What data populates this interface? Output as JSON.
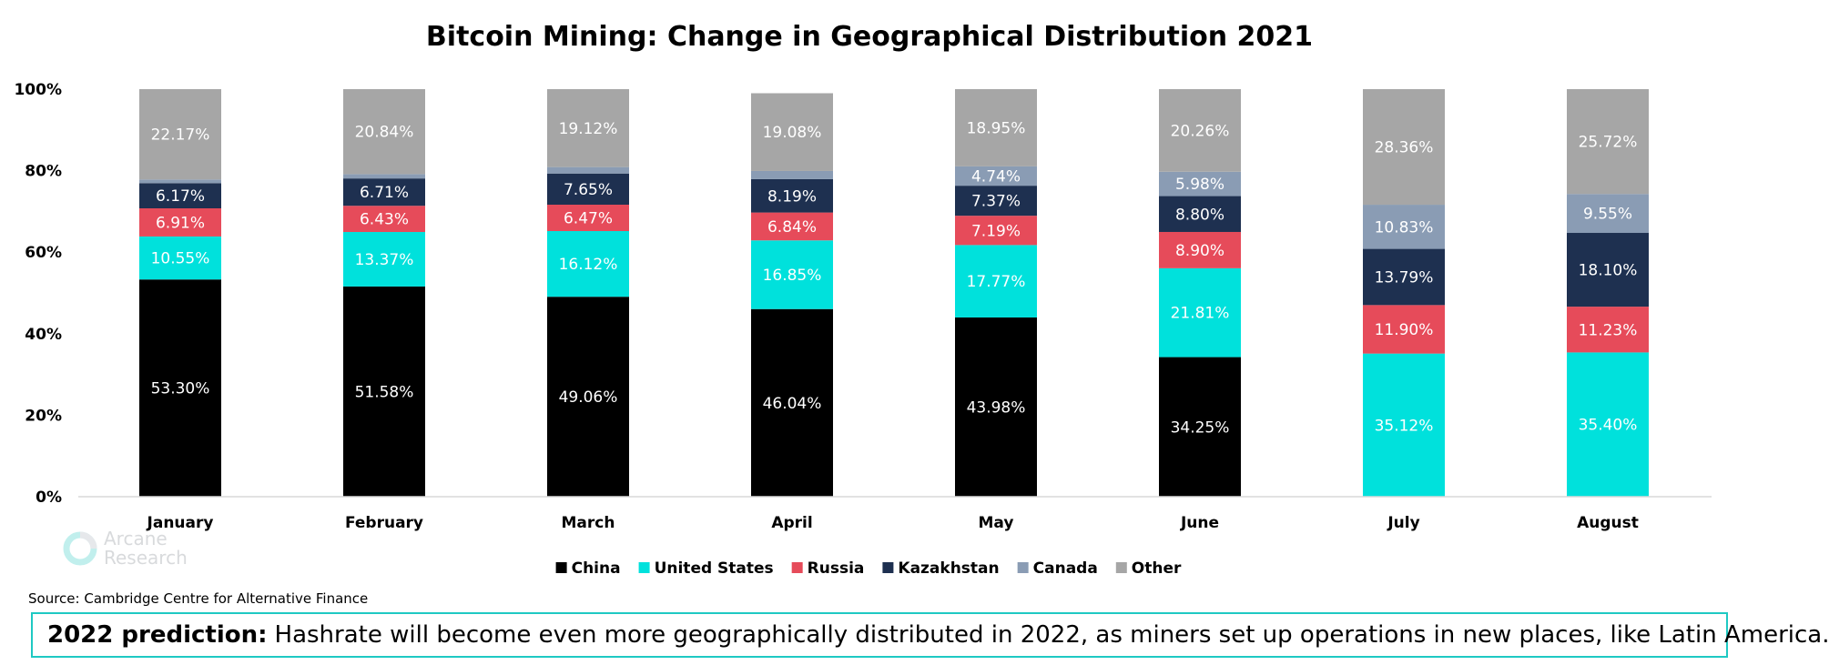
{
  "logo": {
    "line1": "Arcane",
    "line2": "Research",
    "icon": "arcane-ring-icon"
  },
  "source": "Source: Cambridge Centre for Alternative Finance",
  "prediction": {
    "label": "2022 prediction:",
    "text": "Hashrate will become even more geographically distributed in 2022, as miners set up operations in new places, like Latin America."
  },
  "chart_data": {
    "type": "bar",
    "stacked": true,
    "title": "Bitcoin Mining: Change in Geographical Distribution 2021",
    "xlabel": "",
    "ylabel": "",
    "ylim": [
      0,
      100
    ],
    "yticks": [
      "0%",
      "20%",
      "40%",
      "60%",
      "80%",
      "100%"
    ],
    "legend_position": "bottom",
    "categories": [
      "January",
      "February",
      "March",
      "April",
      "May",
      "June",
      "July",
      "August"
    ],
    "series": [
      {
        "name": "China",
        "color": "#000000",
        "label_color": "#ffffff",
        "values": [
          53.3,
          51.58,
          49.06,
          46.04,
          43.98,
          34.25,
          0,
          0
        ],
        "labels": [
          "53.30%",
          "51.58%",
          "49.06%",
          "46.04%",
          "43.98%",
          "34.25%",
          "",
          ""
        ]
      },
      {
        "name": "United States",
        "color": "#00e1dc",
        "label_color": "#ffffff",
        "values": [
          10.55,
          13.37,
          16.12,
          16.85,
          17.77,
          21.81,
          35.12,
          35.4
        ],
        "labels": [
          "10.55%",
          "13.37%",
          "16.12%",
          "16.85%",
          "17.77%",
          "21.81%",
          "35.12%",
          "35.40%"
        ]
      },
      {
        "name": "Russia",
        "color": "#e64b5a",
        "label_color": "#ffffff",
        "values": [
          6.91,
          6.43,
          6.47,
          6.84,
          7.19,
          8.9,
          11.9,
          11.23
        ],
        "labels": [
          "6.91%",
          "6.43%",
          "6.47%",
          "6.84%",
          "7.19%",
          "8.90%",
          "11.90%",
          "11.23%"
        ]
      },
      {
        "name": "Kazakhstan",
        "color": "#1e3050",
        "label_color": "#ffffff",
        "values": [
          6.17,
          6.71,
          7.65,
          8.19,
          7.37,
          8.8,
          13.79,
          18.1
        ],
        "labels": [
          "6.17%",
          "6.71%",
          "7.65%",
          "8.19%",
          "7.37%",
          "8.80%",
          "13.79%",
          "18.10%"
        ]
      },
      {
        "name": "Canada",
        "color": "#8a9cb4",
        "label_color": "#ffffff",
        "values": [
          0.9,
          1.07,
          1.58,
          2.0,
          4.74,
          5.98,
          10.83,
          9.55
        ],
        "labels": [
          "",
          "",
          "",
          "",
          "4.74%",
          "5.98%",
          "10.83%",
          "9.55%"
        ]
      },
      {
        "name": "Other",
        "color": "#a6a6a6",
        "label_color": "#ffffff",
        "values": [
          22.17,
          20.84,
          19.12,
          19.08,
          18.95,
          20.26,
          28.36,
          25.72
        ],
        "labels": [
          "22.17%",
          "20.84%",
          "19.12%",
          "19.08%",
          "18.95%",
          "20.26%",
          "28.36%",
          "25.72%"
        ]
      }
    ]
  }
}
